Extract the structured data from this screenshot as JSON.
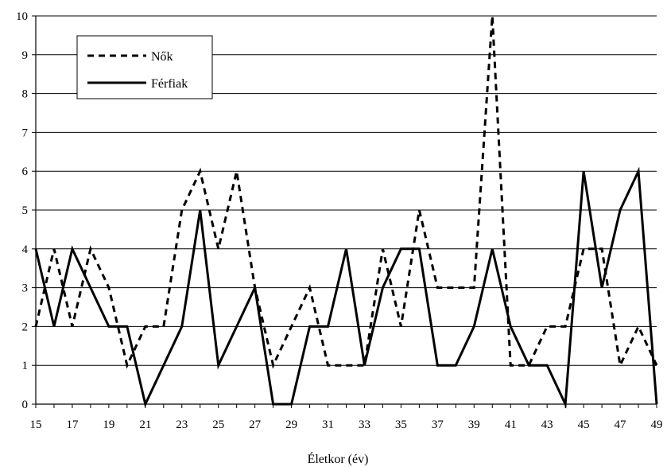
{
  "chart_data": {
    "type": "line",
    "xlabel": "Életkor (év)",
    "ylabel": "",
    "ylim": [
      0,
      10
    ],
    "xlim": [
      15,
      49
    ],
    "yticks": [
      "0",
      "1",
      "2",
      "3",
      "4",
      "5",
      "6",
      "7",
      "8",
      "9",
      "10"
    ],
    "xticks": [
      "15",
      "17",
      "19",
      "21",
      "23",
      "25",
      "27",
      "29",
      "31",
      "33",
      "35",
      "37",
      "39",
      "41",
      "43",
      "45",
      "47",
      "49"
    ],
    "grid": "horizontal",
    "legend_position": "top-left",
    "x": [
      15,
      16,
      17,
      18,
      19,
      20,
      21,
      22,
      23,
      24,
      25,
      26,
      27,
      28,
      29,
      30,
      31,
      32,
      33,
      34,
      35,
      36,
      37,
      38,
      39,
      40,
      41,
      42,
      43,
      44,
      45,
      46,
      47,
      48,
      49
    ],
    "series": [
      {
        "name": "Nők",
        "style": "dashed",
        "color": "#000000",
        "values": [
          2,
          4,
          2,
          4,
          3,
          1,
          2,
          2,
          5,
          6,
          4,
          6,
          3,
          1,
          2,
          3,
          1,
          1,
          1,
          4,
          2,
          5,
          3,
          3,
          3,
          10,
          1,
          1,
          2,
          2,
          4,
          4,
          1,
          2,
          1
        ]
      },
      {
        "name": "Férfiak",
        "style": "solid",
        "color": "#000000",
        "values": [
          4,
          2,
          4,
          3,
          2,
          2,
          0,
          1,
          2,
          5,
          1,
          2,
          3,
          0,
          0,
          2,
          2,
          4,
          1,
          3,
          4,
          4,
          1,
          1,
          2,
          4,
          2,
          1,
          1,
          0,
          6,
          3,
          5,
          6,
          0
        ]
      }
    ]
  }
}
